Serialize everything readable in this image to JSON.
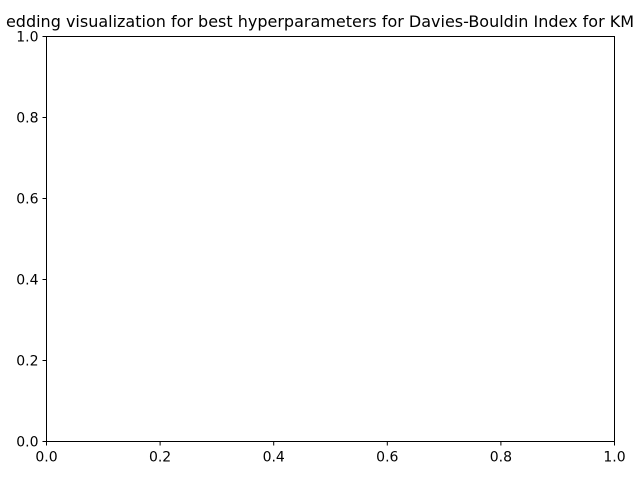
{
  "chart_data": {
    "type": "scatter",
    "title": "edding visualization for best hyperparameters for Davies-Bouldin Index for KM",
    "xlabel": "",
    "ylabel": "",
    "xlim": [
      0.0,
      1.0
    ],
    "ylim": [
      0.0,
      1.0
    ],
    "x_ticks": [
      "0.0",
      "0.2",
      "0.4",
      "0.6",
      "0.8",
      "1.0"
    ],
    "y_ticks": [
      "0.0",
      "0.2",
      "0.4",
      "0.6",
      "0.8",
      "1.0"
    ],
    "grid": false,
    "series": []
  }
}
